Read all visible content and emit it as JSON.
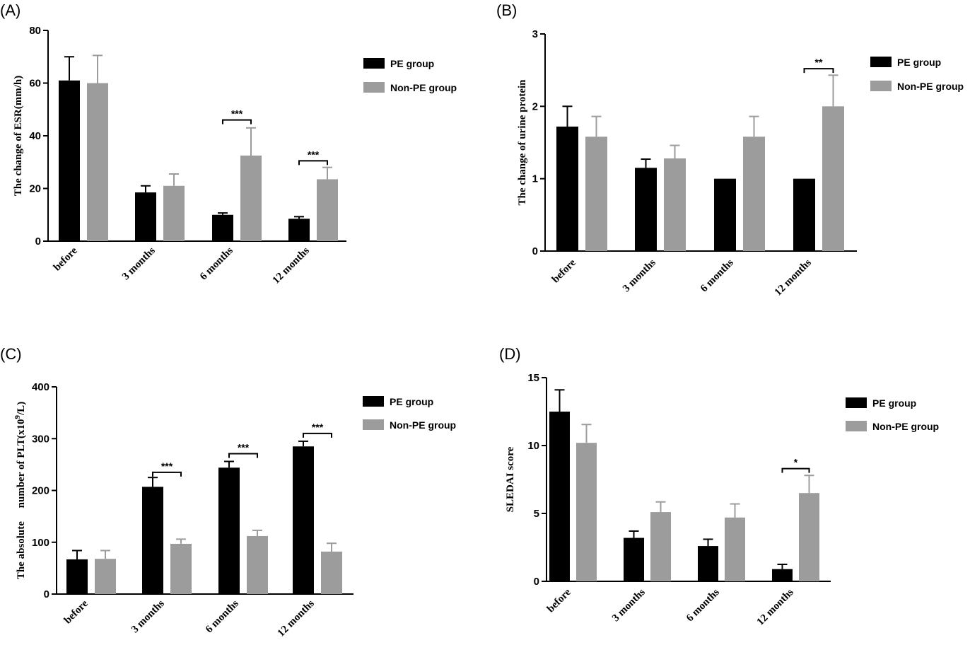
{
  "figure": {
    "colors": {
      "pe": "#000000",
      "non_pe": "#9c9c9c"
    }
  },
  "chart_data": [
    {
      "panel": "(A)",
      "type": "bar",
      "ylabel": "The change of ESR(mm/h)",
      "categories": [
        "before",
        "3 months",
        "6 months",
        "12 months"
      ],
      "ylim": [
        0,
        80
      ],
      "yticks": [
        "0",
        "20",
        "40",
        "60",
        "80"
      ],
      "series": [
        {
          "name": "PE group",
          "values": [
            61,
            18.5,
            10,
            8.5
          ],
          "errors": [
            9,
            2.5,
            0.7,
            0.8
          ]
        },
        {
          "name": "Non-PE group",
          "values": [
            60,
            21,
            32.5,
            23.5
          ],
          "errors": [
            10.5,
            4.5,
            10.5,
            4.5
          ]
        }
      ],
      "significance": [
        {
          "category": "6 months",
          "label": "***",
          "y": 46
        },
        {
          "category": "12 months",
          "label": "***",
          "y": 30.5
        }
      ],
      "legend": "right"
    },
    {
      "panel": "(B)",
      "type": "bar",
      "ylabel": "The change of urine protein",
      "categories": [
        "before",
        "3 months",
        "6 months",
        "12 months"
      ],
      "ylim": [
        0,
        3
      ],
      "yticks": [
        "0",
        "1",
        "2",
        "3"
      ],
      "series": [
        {
          "name": "PE group",
          "values": [
            1.72,
            1.15,
            1.0,
            1.0
          ],
          "errors": [
            0.28,
            0.12,
            0,
            0
          ]
        },
        {
          "name": "Non-PE group",
          "values": [
            1.58,
            1.28,
            1.58,
            2.0
          ],
          "errors": [
            0.28,
            0.18,
            0.28,
            0.43
          ]
        }
      ],
      "significance": [
        {
          "category": "12 months",
          "label": "**",
          "y": 2.52
        }
      ],
      "legend": "right"
    },
    {
      "panel": "(C)",
      "type": "bar",
      "ylabel": "The absolute     number of PLT(x10",
      "ylabel_sup": "9",
      "ylabel_tail": "/L)",
      "categories": [
        "before",
        "3 months",
        "6 months",
        "12 months"
      ],
      "ylim": [
        0,
        400
      ],
      "yticks": [
        "0",
        "100",
        "200",
        "300",
        "400"
      ],
      "series": [
        {
          "name": "PE group",
          "values": [
            67,
            207,
            244,
            285
          ],
          "errors": [
            17,
            18,
            12,
            10
          ]
        },
        {
          "name": "Non-PE group",
          "values": [
            68,
            97,
            112,
            82
          ],
          "errors": [
            16,
            9,
            11,
            16
          ]
        }
      ],
      "significance": [
        {
          "category": "3 months",
          "label": "***",
          "y": 235
        },
        {
          "category": "6 months",
          "label": "***",
          "y": 271
        },
        {
          "category": "12 months",
          "label": "***",
          "y": 310
        }
      ],
      "legend": "right"
    },
    {
      "panel": "(D)",
      "type": "bar",
      "ylabel": "SLEDAI score",
      "categories": [
        "before",
        "3 months",
        "6 months",
        "12 months"
      ],
      "ylim": [
        0,
        15
      ],
      "yticks": [
        "0",
        "5",
        "10",
        "15"
      ],
      "series": [
        {
          "name": "PE group",
          "values": [
            12.5,
            3.2,
            2.6,
            0.9
          ],
          "errors": [
            1.6,
            0.5,
            0.5,
            0.35
          ]
        },
        {
          "name": "Non-PE group",
          "values": [
            10.2,
            5.1,
            4.7,
            6.5
          ],
          "errors": [
            1.35,
            0.75,
            1.0,
            1.3
          ]
        }
      ],
      "significance": [
        {
          "category": "12 months",
          "label": "*",
          "y": 8.3
        }
      ],
      "legend": "right"
    }
  ]
}
